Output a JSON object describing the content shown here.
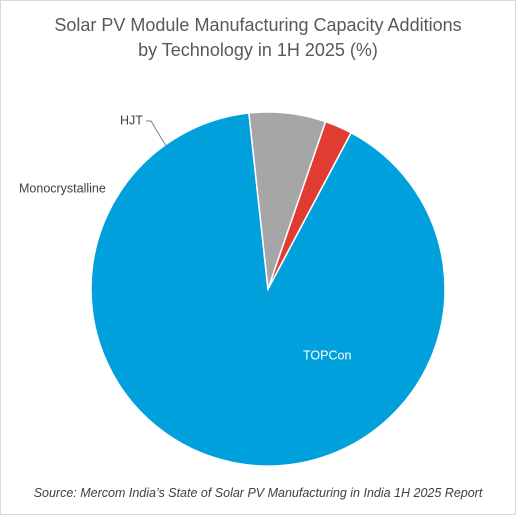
{
  "chart_data": {
    "type": "pie",
    "title_lines": [
      "Solar PV Module Manufacturing Capacity Additions",
      "by Technology in 1H 2025 (%)"
    ],
    "slices": [
      {
        "label": "TOPCon",
        "value": 90.5,
        "color": "#00a0dc"
      },
      {
        "label": "Monocrystalline",
        "value": 7.0,
        "color": "#a6a6a6"
      },
      {
        "label": "HJT",
        "value": 2.5,
        "color": "#e03c31"
      }
    ],
    "legend": "none",
    "data_labels": "category-name"
  },
  "source": "Source: Mercom India’s State of Solar PV Manufacturing in India 1H 2025 Report"
}
